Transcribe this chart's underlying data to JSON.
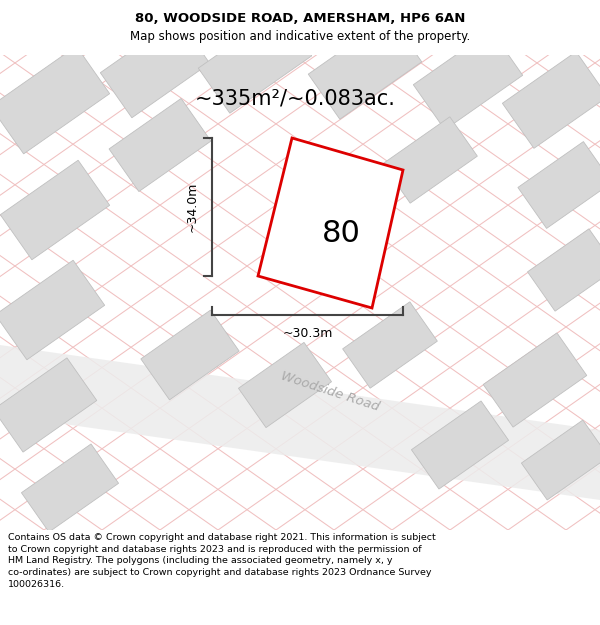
{
  "title_line1": "80, WOODSIDE ROAD, AMERSHAM, HP6 6AN",
  "title_line2": "Map shows position and indicative extent of the property.",
  "area_text": "~335m²/~0.083ac.",
  "label_80": "80",
  "dim_vertical": "~34.0m",
  "dim_horizontal": "~30.3m",
  "road_label": "Woodside Road",
  "footer_text": "Contains OS data © Crown copyright and database right 2021. This information is subject to Crown copyright and database rights 2023 and is reproduced with the permission of HM Land Registry. The polygons (including the associated geometry, namely x, y co-ordinates) are subject to Crown copyright and database rights 2023 Ordnance Survey 100026316.",
  "map_bg": "#f2f2f2",
  "plot_outline_color": "#dd0000",
  "grid_line_color": "#f0c0c0",
  "block_color": "#d8d8d8",
  "block_outline": "#c0c0c0",
  "dim_line_color": "#444444",
  "title_fontsize": 9.5,
  "subtitle_fontsize": 8.5,
  "area_fontsize": 15,
  "label_fontsize": 22,
  "dim_fontsize": 9,
  "road_fontsize": 9.5,
  "footer_fontsize": 6.8
}
